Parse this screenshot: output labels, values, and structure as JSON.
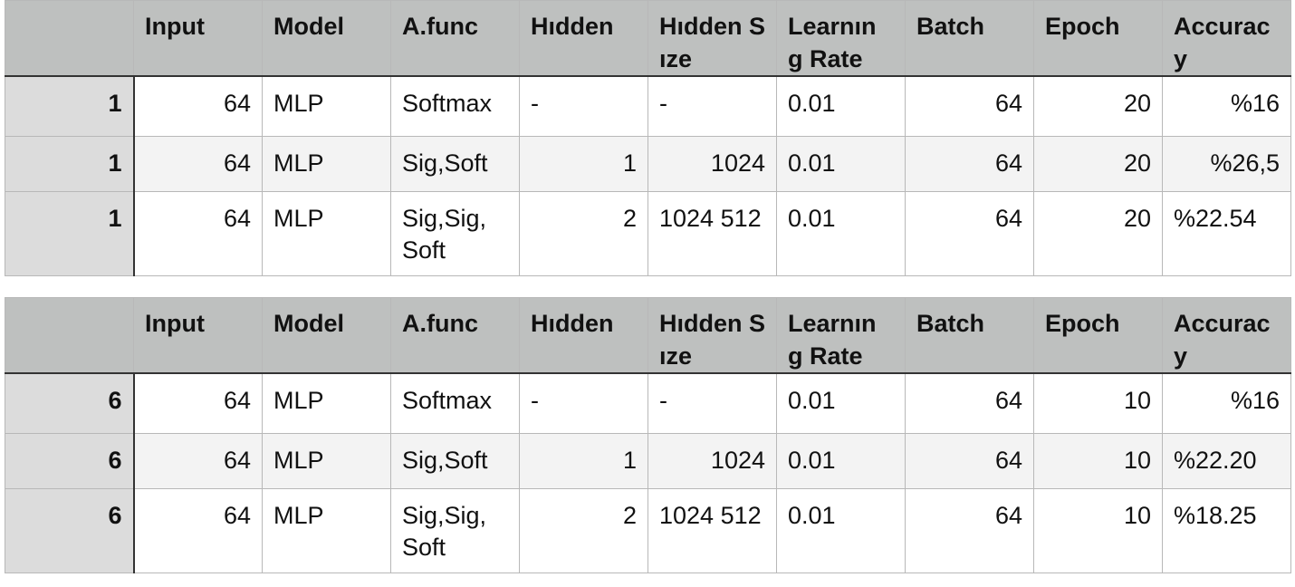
{
  "headers": [
    "",
    "Input",
    "Model",
    "A.func",
    "Hıdden",
    "Hıdden Sıze",
    "Learnın g Rate",
    "Batch",
    "Epoch",
    "Accurac y"
  ],
  "tables": [
    {
      "rows": [
        {
          "id": "1",
          "input": "64",
          "model": "MLP",
          "afunc": "Softmax",
          "hidden": "-",
          "hidden_size": "-",
          "lr": "0.01",
          "batch": "64",
          "epoch": "20",
          "accuracy": "%16"
        },
        {
          "id": "1",
          "input": "64",
          "model": "MLP",
          "afunc": "Sig,Soft",
          "hidden": "1",
          "hidden_size": "1024",
          "lr": "0.01",
          "batch": "64",
          "epoch": "20",
          "accuracy": "%26,5"
        },
        {
          "id": "1",
          "input": "64",
          "model": "MLP",
          "afunc": "Sig,Sig, Soft",
          "hidden": "2",
          "hidden_size": "1024 512",
          "lr": "0.01",
          "batch": "64",
          "epoch": "20",
          "accuracy": "%22.54"
        }
      ]
    },
    {
      "rows": [
        {
          "id": "6",
          "input": "64",
          "model": "MLP",
          "afunc": "Softmax",
          "hidden": "-",
          "hidden_size": "-",
          "lr": "0.01",
          "batch": "64",
          "epoch": "10",
          "accuracy": "%16"
        },
        {
          "id": "6",
          "input": "64",
          "model": "MLP",
          "afunc": "Sig,Soft",
          "hidden": "1",
          "hidden_size": "1024",
          "lr": "0.01",
          "batch": "64",
          "epoch": "10",
          "accuracy": "%22.20"
        },
        {
          "id": "6",
          "input": "64",
          "model": "MLP",
          "afunc": "Sig,Sig, Soft",
          "hidden": "2",
          "hidden_size": "1024 512",
          "lr": "0.01",
          "batch": "64",
          "epoch": "10",
          "accuracy": "%18.25"
        }
      ]
    }
  ]
}
